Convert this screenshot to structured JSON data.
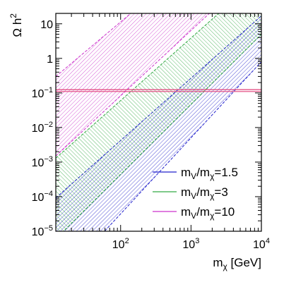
{
  "chart_data": {
    "type": "area",
    "xlabel_base": "m",
    "xlabel_sub": "χ",
    "xlabel_unit": " [GeV]",
    "ylabel_base": "Ω h",
    "ylabel_sup": "2",
    "xscale": "log",
    "yscale": "log",
    "xlim": [
      12,
      10000
    ],
    "ylim": [
      1e-05,
      20
    ],
    "xticks": [
      {
        "value": 100,
        "base": "10",
        "exp": "2"
      },
      {
        "value": 1000,
        "base": "10",
        "exp": "3"
      },
      {
        "value": 10000,
        "base": "10",
        "exp": "4"
      }
    ],
    "yticks": [
      {
        "value": 1e-05,
        "base": "10",
        "exp": "−5"
      },
      {
        "value": 0.0001,
        "base": "10",
        "exp": "−4"
      },
      {
        "value": 0.001,
        "base": "10",
        "exp": "−3"
      },
      {
        "value": 0.01,
        "base": "10",
        "exp": "−2"
      },
      {
        "value": 0.1,
        "base": "10",
        "exp": "−1"
      },
      {
        "value": 1,
        "base": "1",
        "exp": ""
      },
      {
        "value": 10,
        "base": "10",
        "exp": ""
      }
    ],
    "reference_band": {
      "y_low": 0.11,
      "y_high": 0.125,
      "color": "#e0407a"
    },
    "legend_position": "bottom-right",
    "series": [
      {
        "label_base": "m",
        "label_sub1": "V",
        "label_mid": "/m",
        "label_sub2": "χ",
        "label_tail": "=1.5",
        "color": "#2222cc",
        "upper": {
          "x": [
            12,
            10000
          ],
          "y": [
            9.2e-05,
            17
          ]
        },
        "lower": {
          "x": [
            12,
            10000
          ],
          "y": [
            3e-07,
            0.8
          ]
        }
      },
      {
        "label_base": "m",
        "label_sub1": "V",
        "label_mid": "/m",
        "label_sub2": "χ",
        "label_tail": "=3",
        "color": "#33aa44",
        "upper": {
          "x": [
            12,
            10000
          ],
          "y": [
            0.0013,
            250
          ]
        },
        "lower": {
          "x": [
            12,
            10000
          ],
          "y": [
            6e-06,
            5
          ]
        }
      },
      {
        "label_base": "m",
        "label_sub1": "V",
        "label_mid": "/m",
        "label_sub2": "χ",
        "label_tail": "=10",
        "color": "#cc33cc",
        "upper": {
          "x": [
            12,
            10000
          ],
          "y": [
            0.3,
            30000
          ]
        },
        "lower": {
          "x": [
            12,
            10000
          ],
          "y": [
            0.0015,
            500
          ]
        }
      }
    ]
  }
}
